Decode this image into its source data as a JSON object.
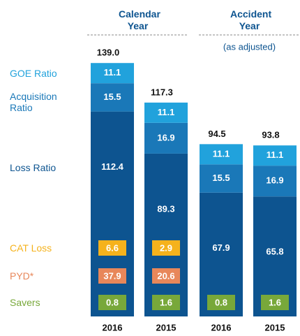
{
  "chart_data": {
    "type": "stacked_bar",
    "groups": [
      {
        "title": "Calendar Year"
      },
      {
        "title": "Accident Year",
        "subtitle": "(as adjusted)"
      }
    ],
    "categories": [
      "2016",
      "2015",
      "2016",
      "2015"
    ],
    "totals": [
      139.0,
      117.3,
      94.5,
      93.8
    ],
    "total_labels": [
      "139.0",
      "117.3",
      "94.5",
      "93.8"
    ],
    "series": [
      {
        "name": "Loss Ratio",
        "color": "#0d5490",
        "values": [
          112.4,
          89.3,
          67.9,
          65.8
        ]
      },
      {
        "name": "Acquisition Ratio",
        "color": "#1a78b8",
        "values": [
          15.5,
          16.9,
          15.5,
          16.9
        ]
      },
      {
        "name": "GOE Ratio",
        "color": "#21a2dc",
        "values": [
          11.1,
          11.1,
          11.1,
          11.1
        ]
      }
    ],
    "badges": [
      {
        "name": "CAT Loss",
        "color": "#f5b21c",
        "values": [
          6.6,
          2.9,
          null,
          null
        ]
      },
      {
        "name": "PYD*",
        "color": "#e8875a",
        "values": [
          37.9,
          20.6,
          null,
          null
        ]
      },
      {
        "name": "Savers",
        "color": "#78a83a",
        "values": [
          0.8,
          1.6,
          0.8,
          1.6
        ]
      }
    ]
  }
}
